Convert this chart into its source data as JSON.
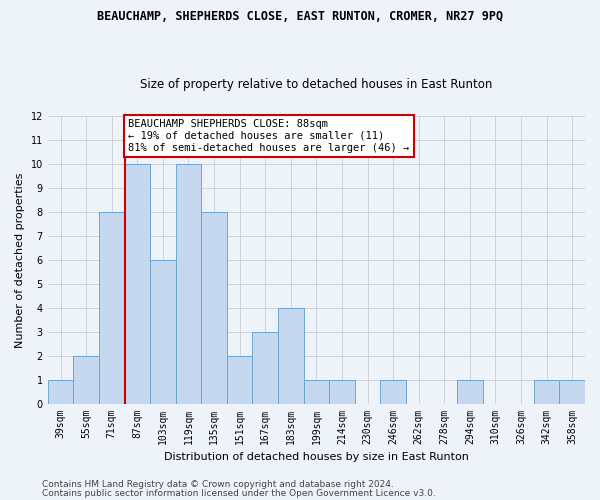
{
  "title": "BEAUCHAMP, SHEPHERDS CLOSE, EAST RUNTON, CROMER, NR27 9PQ",
  "subtitle": "Size of property relative to detached houses in East Runton",
  "xlabel": "Distribution of detached houses by size in East Runton",
  "ylabel": "Number of detached properties",
  "categories": [
    "39sqm",
    "55sqm",
    "71sqm",
    "87sqm",
    "103sqm",
    "119sqm",
    "135sqm",
    "151sqm",
    "167sqm",
    "183sqm",
    "199sqm",
    "214sqm",
    "230sqm",
    "246sqm",
    "262sqm",
    "278sqm",
    "294sqm",
    "310sqm",
    "326sqm",
    "342sqm",
    "358sqm"
  ],
  "values": [
    1,
    2,
    8,
    10,
    6,
    10,
    8,
    2,
    3,
    4,
    1,
    1,
    0,
    1,
    0,
    0,
    1,
    0,
    0,
    1,
    1
  ],
  "bar_color": "#c5d8f0",
  "bar_edge_color": "#6ea6d0",
  "red_line_x": 3,
  "annotation_title": "BEAUCHAMP SHEPHERDS CLOSE: 88sqm",
  "annotation_line1": "← 19% of detached houses are smaller (11)",
  "annotation_line2": "81% of semi-detached houses are larger (46) →",
  "annotation_box_facecolor": "#ffffff",
  "annotation_box_edgecolor": "#cc0000",
  "red_line_color": "#cc0000",
  "ylim": [
    0,
    12
  ],
  "yticks": [
    0,
    1,
    2,
    3,
    4,
    5,
    6,
    7,
    8,
    9,
    10,
    11,
    12
  ],
  "footer1": "Contains HM Land Registry data © Crown copyright and database right 2024.",
  "footer2": "Contains public sector information licensed under the Open Government Licence v3.0.",
  "background_color": "#eef2f9",
  "title_fontsize": 8.5,
  "subtitle_fontsize": 8.5,
  "xlabel_fontsize": 8,
  "ylabel_fontsize": 8,
  "tick_fontsize": 7,
  "annotation_fontsize": 7.5,
  "footer_fontsize": 6.5
}
